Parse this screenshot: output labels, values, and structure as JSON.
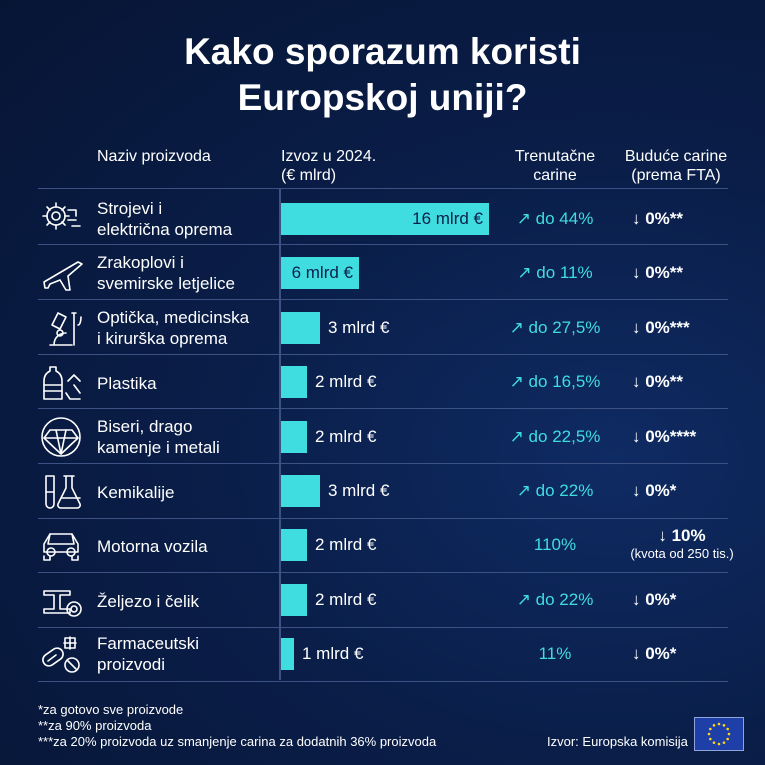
{
  "title_line1": "Kako sporazum koristi",
  "title_line2": "Europskoj uniji?",
  "headers": {
    "product": "Naziv proizvoda",
    "export_line1": "Izvoz u 2024.",
    "export_line2": "(€ mlrd)",
    "current_line1": "Trenutačne",
    "current_line2": "carine",
    "future_line1": "Buduće carine",
    "future_line2": "(prema FTA)"
  },
  "chart_data": {
    "type": "bar",
    "orientation": "horizontal",
    "title": "Kako sporazum koristi Europskoj uniji?",
    "xlabel": "Izvoz u 2024. (€ mlrd)",
    "categories": [
      "Strojevi i električna oprema",
      "Zrakoplovi i svemirske letjelice",
      "Optička, medicinska i kirurška oprema",
      "Plastika",
      "Biseri, drago kamenje i metali",
      "Kemikalije",
      "Motorna vozila",
      "Željezo i čelik",
      "Farmaceutski proizvodi"
    ],
    "values": [
      16,
      6,
      3,
      2,
      2,
      3,
      2,
      2,
      1
    ],
    "xlim": [
      0,
      16
    ]
  },
  "rows": [
    {
      "name1": "Strojevi i",
      "name2": "električna oprema",
      "icon": "machinery-gear-icon",
      "label": "16 mlrd €",
      "current": "↗ do 44%",
      "future": "↓ 0%**",
      "future_note": ""
    },
    {
      "name1": "Zrakoplovi i",
      "name2": "svemirske letjelice",
      "icon": "airplane-icon",
      "label": "6 mlrd €",
      "current": "↗ do 11%",
      "future": "↓ 0%**",
      "future_note": ""
    },
    {
      "name1": "Optička, medicinska",
      "name2": "i kirurška oprema",
      "icon": "microscope-icon",
      "label": "3 mlrd €",
      "current": "↗ do 27,5%",
      "future": "↓ 0%***",
      "future_note": ""
    },
    {
      "name1": "Plastika",
      "name2": "",
      "icon": "plastic-bottle-icon",
      "label": "2 mlrd €",
      "current": "↗ do 16,5%",
      "future": "↓ 0%**",
      "future_note": ""
    },
    {
      "name1": "Biseri, drago",
      "name2": "kamenje i metali",
      "icon": "diamond-icon",
      "label": "2 mlrd €",
      "current": "↗ do 22,5%",
      "future": "↓ 0%****",
      "future_note": ""
    },
    {
      "name1": "Kemikalije",
      "name2": "",
      "icon": "flask-icon",
      "label": "3 mlrd €",
      "current": "↗ do 22%",
      "future": "↓ 0%*",
      "future_note": ""
    },
    {
      "name1": "Motorna vozila",
      "name2": "",
      "icon": "car-icon",
      "label": "2 mlrd €",
      "current": "110%",
      "future": "↓ 10%",
      "future_note": "(kvota od 250 tis.)"
    },
    {
      "name1": "Željezo i čelik",
      "name2": "",
      "icon": "steel-beam-icon",
      "label": "2 mlrd €",
      "current": "↗ do 22%",
      "future": "↓ 0%*",
      "future_note": ""
    },
    {
      "name1": "Farmaceutski",
      "name2": "proizvodi",
      "icon": "pills-icon",
      "label": "1 mlrd €",
      "current": "11%",
      "future": "↓ 0%*",
      "future_note": ""
    }
  ],
  "footnotes": {
    "fn1": "*za gotovo sve proizvode",
    "fn2": "**za 90% proizvoda",
    "fn3": "***za 20% proizvoda uz smanjenje carina za dodatnih 36% proizvoda"
  },
  "source": "Izvor: Europska komisija",
  "colors": {
    "accent": "#3fdde0",
    "background": "#0a1e49",
    "text": "#ffffff"
  }
}
